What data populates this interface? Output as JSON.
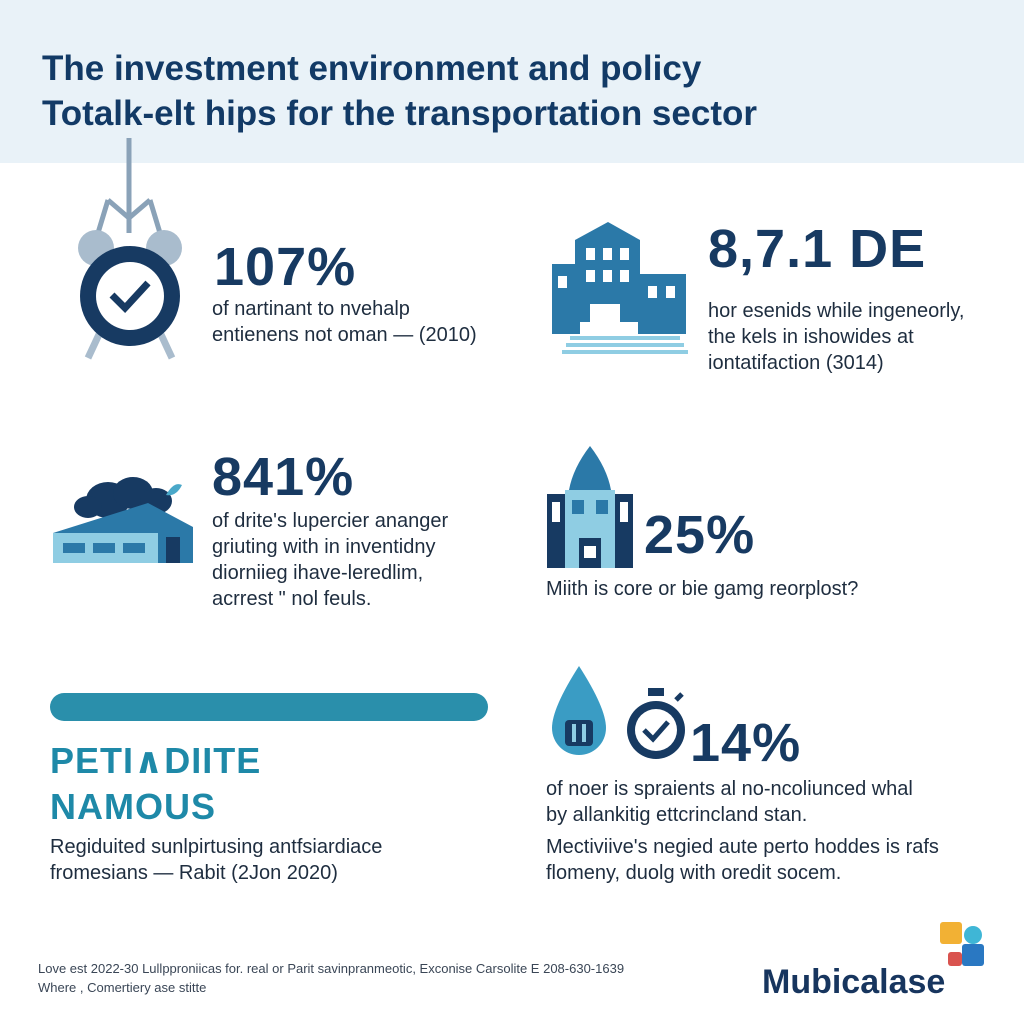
{
  "header": {
    "title_line1": "The investment environment and policy",
    "title_line2": "Totalk-elt hips for the transportation sector"
  },
  "items": [
    {
      "stat": "107%",
      "lines": [
        "of nartinant to nvehalp",
        "entienens not oman — (2010)"
      ],
      "icon": "alarm-clock-icon"
    },
    {
      "stat": "8,7.1 DE",
      "lines": [
        "hor esenids while ingeneorly,",
        "the kels in ishowides at",
        "iontatifaction (3014)"
      ],
      "icon": "building-icon"
    },
    {
      "stat": "841%",
      "lines": [
        "of drite's lupercier ananger",
        "griuting with in inventidny",
        "diorniieg ihave-leredlim,",
        "acrrest \" nol feuls."
      ],
      "icon": "factory-icon"
    },
    {
      "stat": "25%",
      "lines": [
        "Miith is core or bie gamg reorplost?"
      ],
      "icon": "dome-building-icon"
    },
    {
      "stat": "14%",
      "lines": [
        "of noer is spraients al no-ncoliunced whal",
        "by allankitig ettcrincland stan.",
        "Mectiviive's negied aute perto hoddes is rafs",
        "flomeny, duolg with oredit socem."
      ],
      "icon": "stopwatch-icon"
    }
  ],
  "feature": {
    "heading_line1": "PETI∧DIITE",
    "heading_line2": "NAMOUS",
    "lines": [
      "Regiduited sunlpirtusing antfsiardiace",
      "fromesians — Rabit (2Jon 2020)"
    ]
  },
  "footer": {
    "line1": "Love est 2022-30 Lullpproniicas for. real or Parit savinpranmeotic, Exconise Carsolite E 208-630-1639",
    "line2": "Where , Comertiery ase stitte"
  },
  "brand": {
    "name": "Mubicalase"
  },
  "colors": {
    "navy": "#173a62",
    "teal": "#2a8fab",
    "light_blue": "#8fcde3",
    "header_bg": "#e9f2f8",
    "brand_yellow": "#f2b134",
    "brand_blue": "#2a78c2",
    "brand_red": "#d9534f",
    "brand_cyan": "#3fb6d6"
  }
}
